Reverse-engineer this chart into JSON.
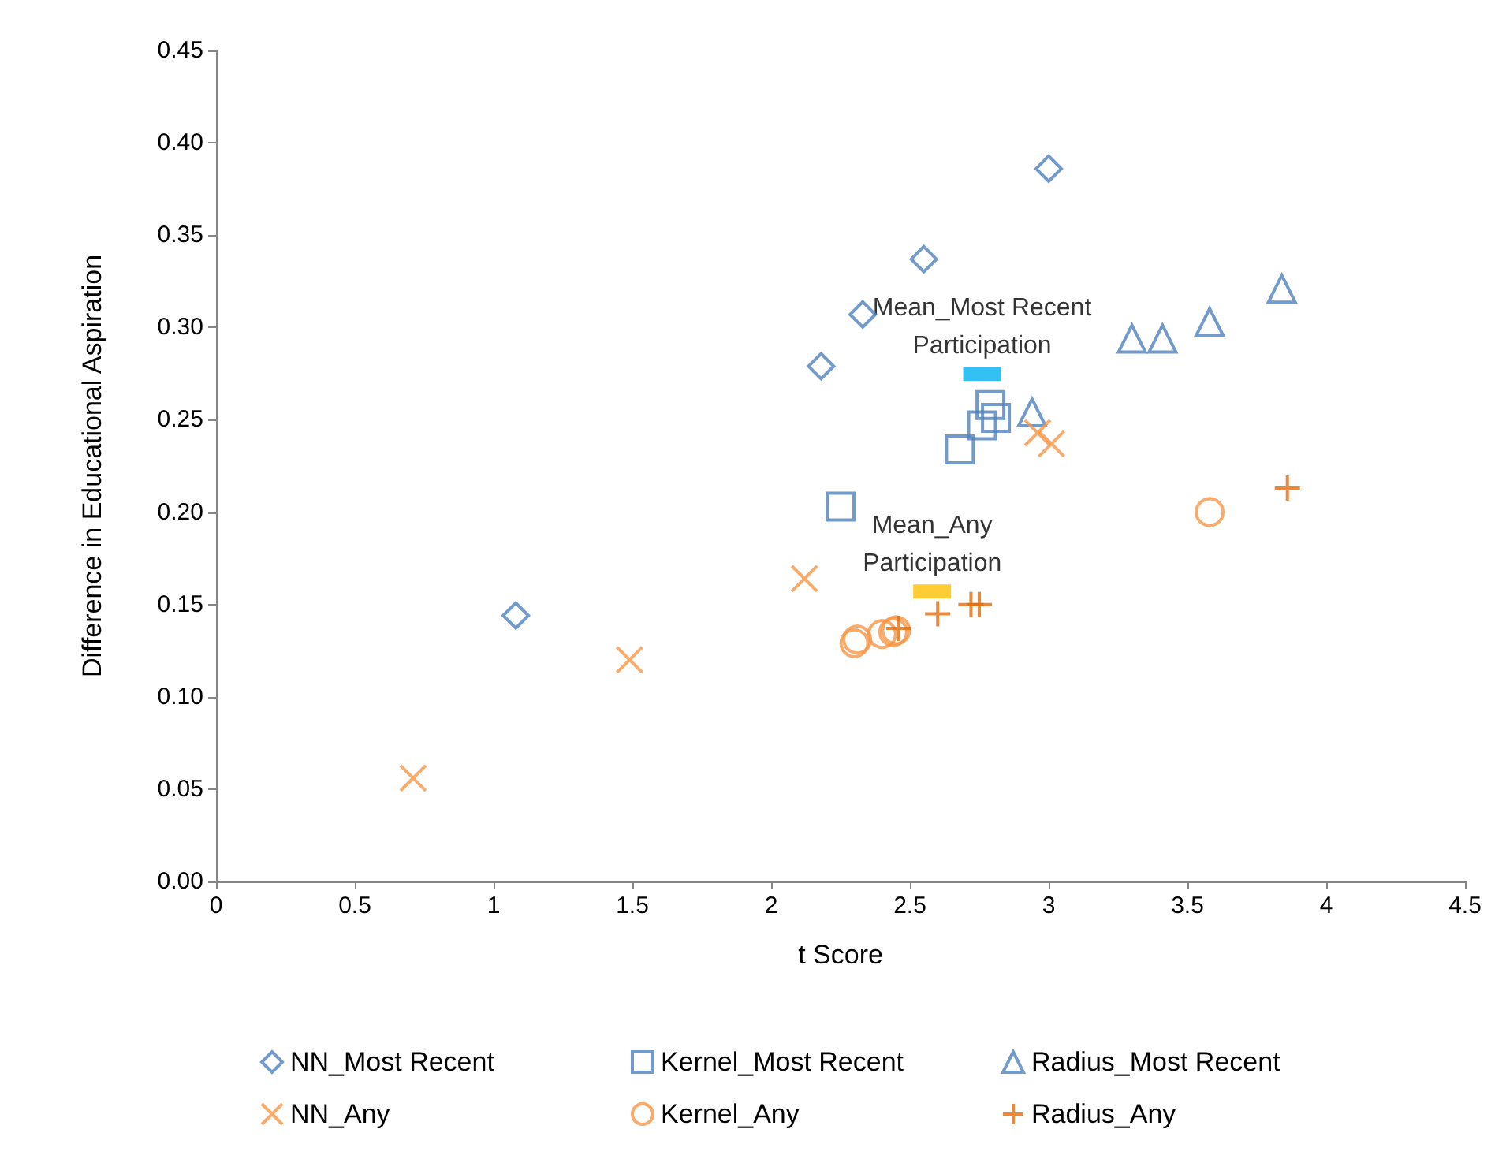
{
  "chart_data": {
    "type": "scatter",
    "xlabel": "t Score",
    "ylabel": "Difference in Educational Aspiration",
    "xlim": [
      0,
      4.5
    ],
    "xticks": [
      0,
      0.5,
      1,
      1.5,
      2,
      2.5,
      3,
      3.5,
      4,
      4.5
    ],
    "ylim": [
      0,
      0.45
    ],
    "yticks": [
      {
        "value": 0,
        "label": "0.00"
      },
      {
        "value": 0.05,
        "label": "0.05"
      },
      {
        "value": 0.1,
        "label": "0.10"
      },
      {
        "value": 0.15,
        "label": "0.15"
      },
      {
        "value": 0.2,
        "label": "0.20"
      },
      {
        "value": 0.25,
        "label": "0.25"
      },
      {
        "value": 0.3,
        "label": "0.30"
      },
      {
        "value": 0.35,
        "label": "0.35"
      },
      {
        "value": 0.4,
        "label": "0.40"
      },
      {
        "value": 0.45,
        "label": "0.45"
      }
    ],
    "grid": false,
    "legend": "bottom",
    "series": [
      {
        "name": "NN_Most Recent",
        "color": "#4f81bd",
        "marker": "diamond",
        "x": [
          1.08,
          2.18,
          2.33,
          2.55,
          3.0
        ],
        "values": [
          0.144,
          0.279,
          0.307,
          0.337,
          0.386
        ]
      },
      {
        "name": "Kernel_Most Recent",
        "color": "#4f81bd",
        "marker": "square",
        "x": [
          2.25,
          2.68,
          2.76,
          2.79,
          2.81
        ],
        "values": [
          0.203,
          0.234,
          0.247,
          0.258,
          0.251
        ]
      },
      {
        "name": "Radius_Most Recent",
        "color": "#4f81bd",
        "marker": "triangle",
        "x": [
          2.94,
          3.3,
          3.41,
          3.58,
          3.84
        ],
        "values": [
          0.254,
          0.294,
          0.294,
          0.303,
          0.321
        ]
      },
      {
        "name": "NN_Any",
        "color": "#f79646",
        "marker": "cross",
        "x": [
          0.71,
          1.49,
          2.12,
          2.96,
          3.01
        ],
        "values": [
          0.056,
          0.12,
          0.164,
          0.243,
          0.237
        ]
      },
      {
        "name": "Kernel_Any",
        "color": "#f79646",
        "marker": "circle",
        "x": [
          2.3,
          2.31,
          2.4,
          2.44,
          2.45,
          3.58
        ],
        "values": [
          0.129,
          0.131,
          0.134,
          0.135,
          0.136,
          0.2
        ]
      },
      {
        "name": "Radius_Any",
        "color": "#e46c0a",
        "marker": "plus",
        "x": [
          2.46,
          2.6,
          2.72,
          2.75,
          3.86
        ],
        "values": [
          0.137,
          0.145,
          0.15,
          0.15,
          0.213
        ]
      },
      {
        "name": "Mean_Most Recent\nParticipation",
        "color": "#00b0f0",
        "marker": "square",
        "x": [
          2.76
        ],
        "values": [
          0.275
        ]
      },
      {
        "name": "Mean_Any\nParticipation",
        "color": "#ffc000",
        "marker": "square",
        "x": [
          2.58
        ],
        "values": [
          0.157
        ]
      }
    ]
  }
}
